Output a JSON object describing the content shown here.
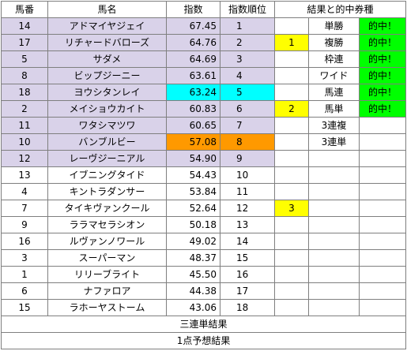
{
  "headers": {
    "num": "馬番",
    "name": "馬名",
    "index": "指数",
    "rank": "指数順位",
    "result": "結果と的中券種"
  },
  "rows": [
    {
      "num": "14",
      "name": "アドマイヤジェイ",
      "index": "67.45",
      "rank": "1",
      "mark": "",
      "ticket": "単勝",
      "hit": "的中！"
    },
    {
      "num": "17",
      "name": "リチャードバローズ",
      "index": "64.76",
      "rank": "2",
      "mark": "1",
      "ticket": "複勝",
      "hit": "的中！"
    },
    {
      "num": "5",
      "name": "サダメ",
      "index": "64.69",
      "rank": "3",
      "mark": "",
      "ticket": "枠連",
      "hit": "的中！"
    },
    {
      "num": "8",
      "name": "ビップジーニー",
      "index": "63.61",
      "rank": "4",
      "mark": "",
      "ticket": "ワイド",
      "hit": "的中！"
    },
    {
      "num": "18",
      "name": "ヨウシタンレイ",
      "index": "63.24",
      "rank": "5",
      "mark": "",
      "ticket": "馬連",
      "hit": "的中！"
    },
    {
      "num": "2",
      "name": "メイショウカイト",
      "index": "60.83",
      "rank": "6",
      "mark": "2",
      "ticket": "馬単",
      "hit": "的中！"
    },
    {
      "num": "11",
      "name": "ワタシマツワ",
      "index": "60.65",
      "rank": "7",
      "mark": "",
      "ticket": "3連複",
      "hit": ""
    },
    {
      "num": "10",
      "name": "バンブルビー",
      "index": "57.08",
      "rank": "8",
      "mark": "",
      "ticket": "3連単",
      "hit": ""
    },
    {
      "num": "12",
      "name": "レーヴジーニアル",
      "index": "54.90",
      "rank": "9",
      "mark": "",
      "ticket": "",
      "hit": ""
    },
    {
      "num": "13",
      "name": "イブニングタイド",
      "index": "54.43",
      "rank": "10",
      "mark": "",
      "ticket": "",
      "hit": ""
    },
    {
      "num": "4",
      "name": "キントラダンサー",
      "index": "53.84",
      "rank": "11",
      "mark": "",
      "ticket": "",
      "hit": ""
    },
    {
      "num": "7",
      "name": "タイキヴァンクール",
      "index": "52.64",
      "rank": "12",
      "mark": "3",
      "ticket": "",
      "hit": ""
    },
    {
      "num": "9",
      "name": "ララマセラシオン",
      "index": "50.18",
      "rank": "13",
      "mark": "",
      "ticket": "",
      "hit": ""
    },
    {
      "num": "16",
      "name": "ルヴァンノワール",
      "index": "49.02",
      "rank": "14",
      "mark": "",
      "ticket": "",
      "hit": ""
    },
    {
      "num": "3",
      "name": "スーパーマン",
      "index": "48.37",
      "rank": "15",
      "mark": "",
      "ticket": "",
      "hit": ""
    },
    {
      "num": "1",
      "name": "リリーブライト",
      "index": "45.50",
      "rank": "16",
      "mark": "",
      "ticket": "",
      "hit": ""
    },
    {
      "num": "6",
      "name": "ナファロア",
      "index": "44.38",
      "rank": "17",
      "mark": "",
      "ticket": "",
      "hit": ""
    },
    {
      "num": "15",
      "name": "ラホーヤストーム",
      "index": "43.06",
      "rank": "18",
      "mark": "",
      "ticket": "",
      "hit": ""
    }
  ],
  "footer": {
    "trifecta_result": "三連単結果",
    "one_point_result": "1点予想結果"
  },
  "colors": {
    "highlight_rows": "#d9d2e9",
    "rank5": "#00ffff",
    "rank8": "#ff9900",
    "mark": "#ffff00",
    "hit": "#00ff00"
  }
}
